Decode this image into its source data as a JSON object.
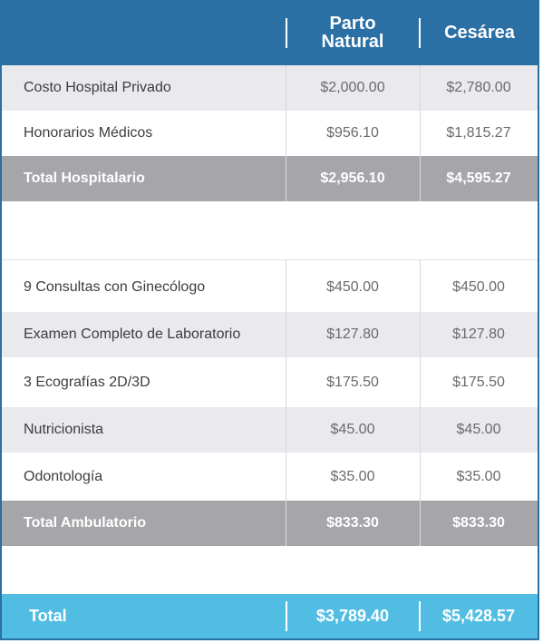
{
  "header": {
    "col1": "Parto Natural",
    "col2": "Cesárea"
  },
  "rows": [
    {
      "label": "Costo Hospital Privado",
      "v1": "$2,000.00",
      "v2": "$2,780.00"
    },
    {
      "label": "Honorarios Médicos",
      "v1": "$956.10",
      "v2": "$1,815.27"
    },
    {
      "label": "Total Hospitalario",
      "v1": "$2,956.10",
      "v2": "$4,595.27"
    },
    {
      "label": "9 Consultas con Ginecólogo",
      "v1": "$450.00",
      "v2": "$450.00"
    },
    {
      "label": "Examen Completo de Laboratorio",
      "v1": "$127.80",
      "v2": "$127.80"
    },
    {
      "label": "3 Ecografías 2D/3D",
      "v1": "$175.50",
      "v2": "$175.50"
    },
    {
      "label": "Nutricionista",
      "v1": "$45.00",
      "v2": "$45.00"
    },
    {
      "label": "Odontología",
      "v1": "$35.00",
      "v2": "$35.00"
    },
    {
      "label": "Total Ambulatorio",
      "v1": "$833.30",
      "v2": "$833.30"
    }
  ],
  "total": {
    "label": "Total",
    "v1": "$3,789.40",
    "v2": "$5,428.57"
  },
  "colors": {
    "header_blue": "#2a70a4",
    "subtotal_grey": "#a6a6aa",
    "total_cyan": "#52bde3",
    "row_grey": "#e9e9ee"
  }
}
